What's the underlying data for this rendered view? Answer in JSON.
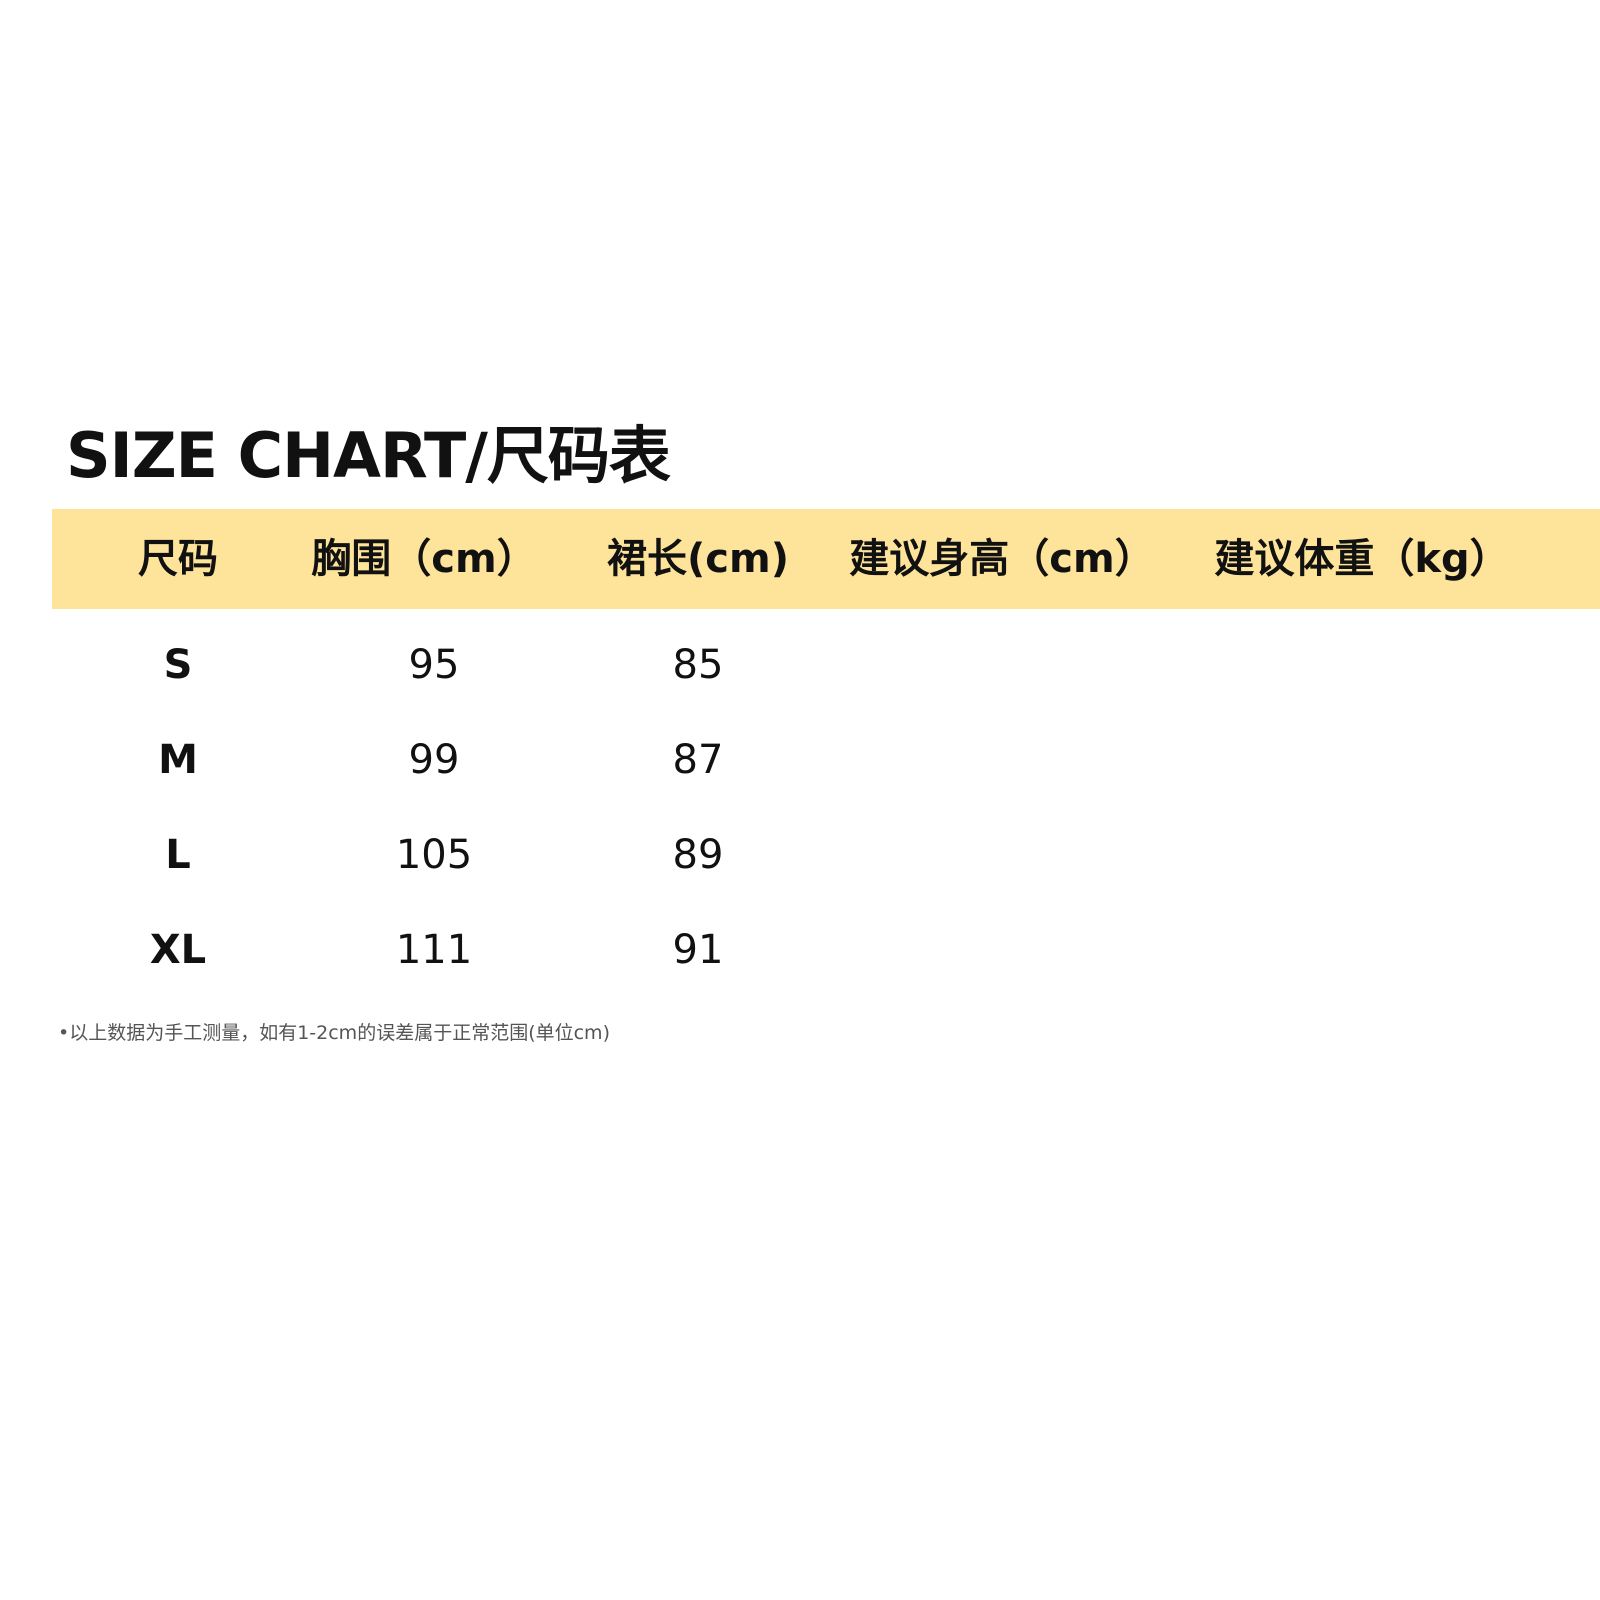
{
  "title": "SIZE CHART/尺码表",
  "table": {
    "headers": [
      "尺码",
      "胸围（cm）",
      "裙长(cm)",
      "建议身高（cm）",
      "建议体重（kg）"
    ],
    "rows": [
      [
        "S",
        "95",
        "85",
        "",
        ""
      ],
      [
        "M",
        "99",
        "87",
        "",
        ""
      ],
      [
        "L",
        "105",
        "89",
        "",
        ""
      ],
      [
        "XL",
        "111",
        "91",
        "",
        ""
      ]
    ]
  },
  "note": "•以上数据为手工测量，如有1-2cm的误差属于正常范围(单位cm)",
  "colors": {
    "header_bg": "#fde49a"
  }
}
